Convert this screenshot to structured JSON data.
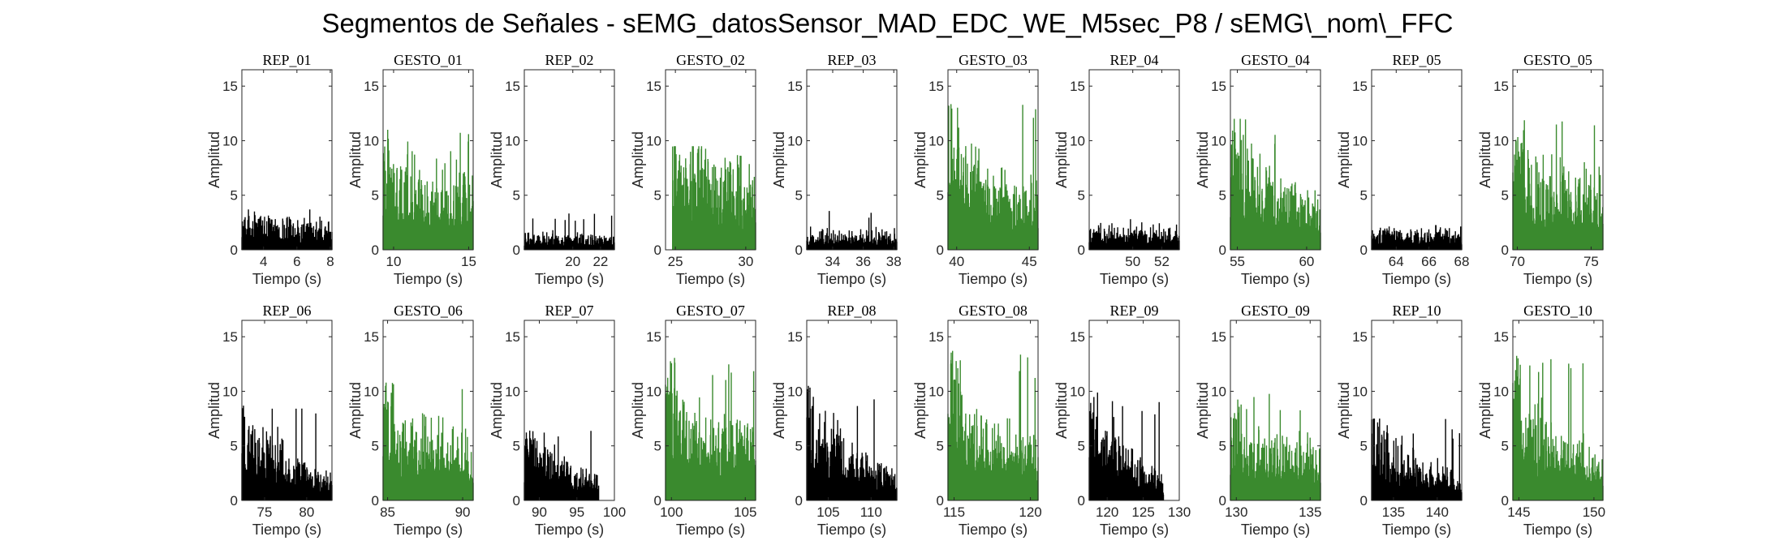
{
  "figure": {
    "title": "Segmentos de Señales - sEMG_datosSensor_MAD_EDC_WE_M5sec_P8 / sEMG\\_nom\\_FFC",
    "colors": {
      "rep": "#000000",
      "gesto": "#3a8a2e",
      "axes": "#262626"
    }
  },
  "chart_data": [
    {
      "type": "area",
      "title": "REP_01",
      "xlabel": "Tiempo (s)",
      "ylabel": "Amplitud",
      "xlim": [
        2.7,
        8.1
      ],
      "xticks": [
        4,
        6,
        8
      ],
      "ylim": [
        0,
        16.5
      ],
      "yticks": [
        0,
        5,
        10,
        15
      ],
      "color": "rep",
      "x_data": [
        2.7,
        8.1
      ],
      "level_start": 2.2,
      "level_end": 1.6,
      "peak": 3.9,
      "spread": 0.55,
      "onset_peak": 0,
      "decay": 0.2
    },
    {
      "type": "area",
      "title": "GESTO_01",
      "xlabel": "Tiempo (s)",
      "ylabel": "Amplitud",
      "xlim": [
        9.3,
        15.3
      ],
      "xticks": [
        10,
        15
      ],
      "ylim": [
        0,
        16.5
      ],
      "yticks": [
        0,
        5,
        10,
        15
      ],
      "color": "gesto",
      "x_data": [
        9.3,
        15.3
      ],
      "level_start": 4.5,
      "level_end": 4.0,
      "peak": 11.0,
      "spread": 0.55,
      "onset_peak": 9.0,
      "decay": 0.25
    },
    {
      "type": "area",
      "title": "REP_02",
      "xlabel": "Tiempo (s)",
      "ylabel": "Amplitud",
      "xlim": [
        16.5,
        23.0
      ],
      "xticks": [
        20,
        22
      ],
      "ylim": [
        0,
        16.5
      ],
      "yticks": [
        0,
        5,
        10,
        15
      ],
      "color": "rep",
      "x_data": [
        16.5,
        23.0
      ],
      "level_start": 1.0,
      "level_end": 0.8,
      "peak": 3.4,
      "spread": 0.6,
      "onset_peak": 0,
      "decay": 0.2
    },
    {
      "type": "area",
      "title": "GESTO_02",
      "xlabel": "Tiempo (s)",
      "ylabel": "Amplitud",
      "xlim": [
        24.3,
        30.7
      ],
      "xticks": [
        25,
        30
      ],
      "ylim": [
        0,
        16.5
      ],
      "yticks": [
        0,
        5,
        10,
        15
      ],
      "color": "gesto",
      "x_data": [
        24.8,
        30.7
      ],
      "level_start": 5.5,
      "level_end": 4.5,
      "peak": 9.5,
      "spread": 0.45,
      "onset_peak": 8.5,
      "decay": 0.3
    },
    {
      "type": "area",
      "title": "REP_03",
      "xlabel": "Tiempo (s)",
      "ylabel": "Amplitud",
      "xlim": [
        32.3,
        38.2
      ],
      "xticks": [
        34,
        36,
        38
      ],
      "ylim": [
        0,
        16.5
      ],
      "yticks": [
        0,
        5,
        10,
        15
      ],
      "color": "rep",
      "x_data": [
        32.3,
        38.2
      ],
      "level_start": 1.1,
      "level_end": 1.1,
      "peak": 3.6,
      "spread": 0.55,
      "onset_peak": 0,
      "decay": 0.2
    },
    {
      "type": "area",
      "title": "GESTO_03",
      "xlabel": "Tiempo (s)",
      "ylabel": "Amplitud",
      "xlim": [
        39.4,
        45.6
      ],
      "xticks": [
        40,
        45
      ],
      "ylim": [
        0,
        16.5
      ],
      "yticks": [
        0,
        5,
        10,
        15
      ],
      "color": "gesto",
      "x_data": [
        39.4,
        45.6
      ],
      "level_start": 4.5,
      "level_end": 3.5,
      "peak": 13.7,
      "spread": 0.6,
      "onset_peak": 11.5,
      "decay": 0.25
    },
    {
      "type": "area",
      "title": "REP_04",
      "xlabel": "Tiempo (s)",
      "ylabel": "Amplitud",
      "xlim": [
        47.0,
        53.2
      ],
      "xticks": [
        50,
        52
      ],
      "ylim": [
        0,
        16.5
      ],
      "yticks": [
        0,
        5,
        10,
        15
      ],
      "color": "rep",
      "x_data": [
        47.0,
        53.2
      ],
      "level_start": 1.3,
      "level_end": 1.3,
      "peak": 3.0,
      "spread": 0.5,
      "onset_peak": 0,
      "decay": 0.2
    },
    {
      "type": "area",
      "title": "GESTO_04",
      "xlabel": "Tiempo (s)",
      "ylabel": "Amplitud",
      "xlim": [
        54.5,
        61.0
      ],
      "xticks": [
        55,
        60
      ],
      "ylim": [
        0,
        16.5
      ],
      "yticks": [
        0,
        5,
        10,
        15
      ],
      "color": "gesto",
      "x_data": [
        54.5,
        61.0
      ],
      "level_start": 5.0,
      "level_end": 3.0,
      "peak": 12.0,
      "spread": 0.6,
      "onset_peak": 10.5,
      "decay": 0.25
    },
    {
      "type": "area",
      "title": "REP_05",
      "xlabel": "Tiempo (s)",
      "ylabel": "Amplitud",
      "xlim": [
        62.5,
        68.0
      ],
      "xticks": [
        64,
        66,
        68
      ],
      "ylim": [
        0,
        16.5
      ],
      "yticks": [
        0,
        5,
        10,
        15
      ],
      "color": "rep",
      "x_data": [
        62.5,
        68.0
      ],
      "level_start": 1.2,
      "level_end": 1.2,
      "peak": 2.9,
      "spread": 0.5,
      "onset_peak": 0,
      "decay": 0.2
    },
    {
      "type": "area",
      "title": "GESTO_05",
      "xlabel": "Tiempo (s)",
      "ylabel": "Amplitud",
      "xlim": [
        69.7,
        75.8
      ],
      "xticks": [
        70,
        75
      ],
      "ylim": [
        0,
        16.5
      ],
      "yticks": [
        0,
        5,
        10,
        15
      ],
      "color": "gesto",
      "x_data": [
        69.7,
        75.8
      ],
      "level_start": 5.0,
      "level_end": 4.0,
      "peak": 12.1,
      "spread": 0.6,
      "onset_peak": 10.0,
      "decay": 0.25
    },
    {
      "type": "area",
      "title": "REP_06",
      "xlabel": "Tiempo (s)",
      "ylabel": "Amplitud",
      "xlim": [
        72.3,
        83.0
      ],
      "xticks": [
        75,
        80
      ],
      "ylim": [
        0,
        16.5
      ],
      "yticks": [
        0,
        5,
        10,
        15
      ],
      "color": "rep",
      "x_data": [
        72.3,
        83.0
      ],
      "level_start": 3.5,
      "level_end": 1.5,
      "peak": 8.8,
      "spread": 0.6,
      "onset_peak": 7.5,
      "decay": 0.3
    },
    {
      "type": "area",
      "title": "GESTO_06",
      "xlabel": "Tiempo (s)",
      "ylabel": "Amplitud",
      "xlim": [
        84.7,
        90.7
      ],
      "xticks": [
        85,
        90
      ],
      "ylim": [
        0,
        16.5
      ],
      "yticks": [
        0,
        5,
        10,
        15
      ],
      "color": "gesto",
      "x_data": [
        84.7,
        90.7
      ],
      "level_start": 4.5,
      "level_end": 3.5,
      "peak": 10.8,
      "spread": 0.55,
      "onset_peak": 9.0,
      "decay": 0.25
    },
    {
      "type": "area",
      "title": "REP_07",
      "xlabel": "Tiempo (s)",
      "ylabel": "Amplitud",
      "xlim": [
        88.0,
        100.0
      ],
      "xticks": [
        90,
        95,
        100
      ],
      "ylim": [
        0,
        16.5
      ],
      "yticks": [
        0,
        5,
        10,
        15
      ],
      "color": "rep",
      "x_data": [
        88.0,
        97.9
      ],
      "level_start": 3.0,
      "level_end": 1.3,
      "peak": 6.4,
      "spread": 0.5,
      "onset_peak": 5.5,
      "decay": 0.3
    },
    {
      "type": "area",
      "title": "GESTO_07",
      "xlabel": "Tiempo (s)",
      "ylabel": "Amplitud",
      "xlim": [
        99.6,
        105.7
      ],
      "xticks": [
        100,
        105
      ],
      "ylim": [
        0,
        16.5
      ],
      "yticks": [
        0,
        5,
        10,
        15
      ],
      "color": "gesto",
      "x_data": [
        99.6,
        105.7
      ],
      "level_start": 5.0,
      "level_end": 4.5,
      "peak": 13.7,
      "spread": 0.6,
      "onset_peak": 11.0,
      "decay": 0.25
    },
    {
      "type": "area",
      "title": "REP_08",
      "xlabel": "Tiempo (s)",
      "ylabel": "Amplitud",
      "xlim": [
        102.5,
        113.0
      ],
      "xticks": [
        105,
        110
      ],
      "ylim": [
        0,
        16.5
      ],
      "yticks": [
        0,
        5,
        10,
        15
      ],
      "color": "rep",
      "x_data": [
        102.5,
        113.0
      ],
      "level_start": 4.5,
      "level_end": 1.5,
      "peak": 10.5,
      "spread": 0.6,
      "onset_peak": 9.0,
      "decay": 0.3
    },
    {
      "type": "area",
      "title": "GESTO_08",
      "xlabel": "Tiempo (s)",
      "ylabel": "Amplitud",
      "xlim": [
        114.6,
        120.5
      ],
      "xticks": [
        115,
        120
      ],
      "ylim": [
        0,
        16.5
      ],
      "yticks": [
        0,
        5,
        10,
        15
      ],
      "color": "gesto",
      "x_data": [
        114.6,
        120.5
      ],
      "level_start": 5.5,
      "level_end": 3.5,
      "peak": 14.0,
      "spread": 0.6,
      "onset_peak": 12.0,
      "decay": 0.25
    },
    {
      "type": "area",
      "title": "REP_09",
      "xlabel": "Tiempo (s)",
      "ylabel": "Amplitud",
      "xlim": [
        117.5,
        130.0
      ],
      "xticks": [
        120,
        125,
        130
      ],
      "ylim": [
        0,
        16.5
      ],
      "yticks": [
        0,
        5,
        10,
        15
      ],
      "color": "rep",
      "x_data": [
        117.5,
        127.8
      ],
      "level_start": 3.0,
      "level_end": 1.2,
      "peak": 10.0,
      "spread": 0.6,
      "onset_peak": 9.0,
      "decay": 0.35
    },
    {
      "type": "area",
      "title": "GESTO_09",
      "xlabel": "Tiempo (s)",
      "ylabel": "Amplitud",
      "xlim": [
        129.6,
        135.7
      ],
      "xticks": [
        130,
        135
      ],
      "ylim": [
        0,
        16.5
      ],
      "yticks": [
        0,
        5,
        10,
        15
      ],
      "color": "gesto",
      "x_data": [
        129.6,
        135.7
      ],
      "level_start": 3.5,
      "level_end": 3.5,
      "peak": 10.2,
      "spread": 0.6,
      "onset_peak": 8.5,
      "decay": 0.25
    },
    {
      "type": "area",
      "title": "REP_10",
      "xlabel": "Tiempo (s)",
      "ylabel": "Amplitud",
      "xlim": [
        132.5,
        142.8
      ],
      "xticks": [
        135,
        140
      ],
      "ylim": [
        0,
        16.5
      ],
      "yticks": [
        0,
        5,
        10,
        15
      ],
      "color": "rep",
      "x_data": [
        132.5,
        142.8
      ],
      "level_start": 3.0,
      "level_end": 1.4,
      "peak": 7.5,
      "spread": 0.5,
      "onset_peak": 6.5,
      "decay": 0.3
    },
    {
      "type": "area",
      "title": "GESTO_10",
      "xlabel": "Tiempo (s)",
      "ylabel": "Amplitud",
      "xlim": [
        144.6,
        150.6
      ],
      "xticks": [
        145,
        150
      ],
      "ylim": [
        0,
        16.5
      ],
      "yticks": [
        0,
        5,
        10,
        15
      ],
      "color": "gesto",
      "x_data": [
        144.6,
        150.6
      ],
      "level_start": 4.5,
      "level_end": 3.0,
      "peak": 14.0,
      "spread": 0.6,
      "onset_peak": 12.0,
      "decay": 0.25
    }
  ]
}
